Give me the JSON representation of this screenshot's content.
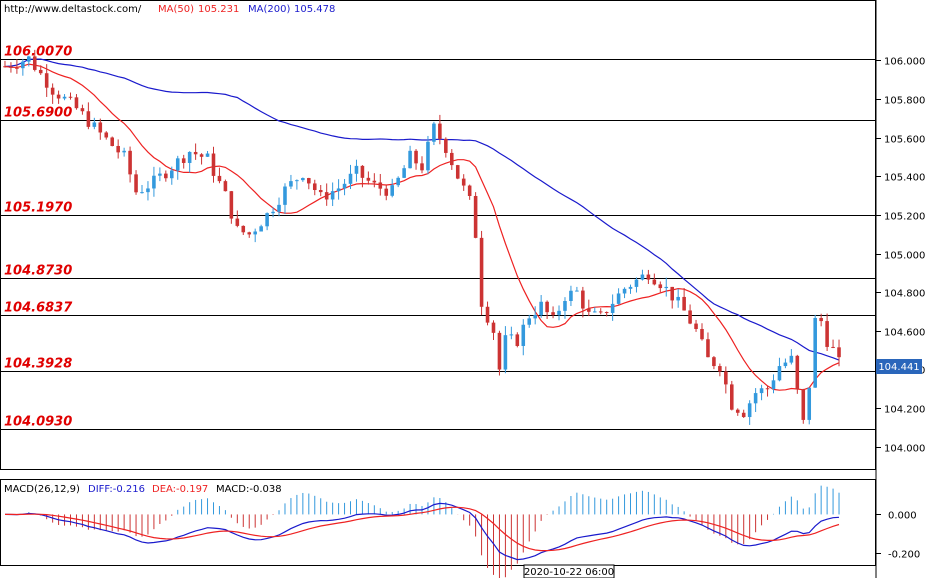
{
  "header": {
    "site": "http://www.deltastock.com/",
    "ma50_label": "MA(50)",
    "ma50_value": "105.231",
    "ma200_label": "MA(200)",
    "ma200_value": "105.478"
  },
  "macd_header": {
    "name": "MACD(26,12,9)",
    "diff": "DIFF:-0.216",
    "dea": "DEA:-0.197",
    "macd": "MACD:-0.038"
  },
  "colors": {
    "up": "#3399dd",
    "down": "#cc3333",
    "ma50": "#ee2222",
    "ma200": "#1a1acc",
    "level_text": "#e00000",
    "last_price_box": "#2a66bb"
  },
  "chart_data": {
    "type": "candlestick",
    "title": "",
    "ylim": [
      103.92,
      106.22
    ],
    "y_ticks": [
      "106.000",
      "105.800",
      "105.600",
      "105.400",
      "105.200",
      "105.000",
      "104.800",
      "104.600",
      "104.400",
      "104.200",
      "104.000"
    ],
    "last_price": "104.441",
    "levels": [
      {
        "label": "106.0070",
        "value": 106.007
      },
      {
        "label": "105.6900",
        "value": 105.69
      },
      {
        "label": "105.1970",
        "value": 105.197
      },
      {
        "label": "104.8730",
        "value": 104.873
      },
      {
        "label": "104.6837",
        "value": 104.6837
      },
      {
        "label": "104.3928",
        "value": 104.3928
      },
      {
        "label": "104.0930",
        "value": 104.093
      }
    ],
    "series": [
      {
        "name": "MA(50)",
        "values": []
      },
      {
        "name": "MA(200)",
        "values": []
      }
    ],
    "candles": [],
    "x_label": "2020-10-22 06:00",
    "macd": {
      "ylim": [
        -0.26,
        0.17
      ],
      "y_ticks": [
        "0.000",
        "-0.200"
      ],
      "diff": [],
      "dea": [],
      "hist": []
    }
  }
}
